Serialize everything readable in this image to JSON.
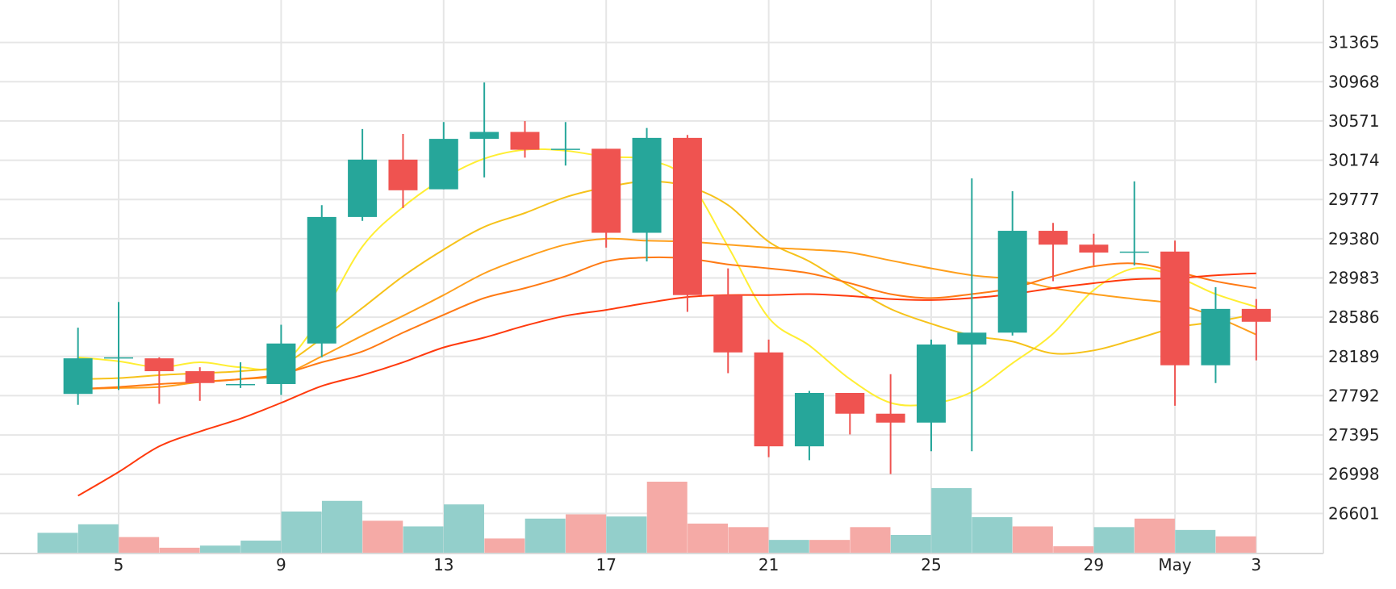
{
  "chart_data": {
    "type": "candlestick",
    "title": "",
    "xlabel": "",
    "ylabel": "",
    "y_ticks": [
      26601,
      26998,
      27395,
      27792,
      28189,
      28586,
      28983,
      29380,
      29777,
      30174,
      30571,
      30968,
      31365
    ],
    "ylim": [
      26204,
      31762
    ],
    "x_ticks": [
      {
        "day": 5,
        "label": "5"
      },
      {
        "day": 9,
        "label": "9"
      },
      {
        "day": 13,
        "label": "13"
      },
      {
        "day": 17,
        "label": "17"
      },
      {
        "day": 21,
        "label": "21"
      },
      {
        "day": 25,
        "label": "25"
      },
      {
        "day": 29,
        "label": "29"
      },
      {
        "day": 31,
        "label": "May"
      },
      {
        "day": 33,
        "label": "3"
      }
    ],
    "candles": [
      {
        "day": 4,
        "open": 27810,
        "high": 28480,
        "low": 27700,
        "close": 28170
      },
      {
        "day": 5,
        "open": 28170,
        "high": 28740,
        "low": 27850,
        "close": 28180
      },
      {
        "day": 6,
        "open": 28170,
        "high": 28180,
        "low": 27710,
        "close": 28040
      },
      {
        "day": 7,
        "open": 28040,
        "high": 28080,
        "low": 27740,
        "close": 27920
      },
      {
        "day": 8,
        "open": 27900,
        "high": 28130,
        "low": 27870,
        "close": 27910
      },
      {
        "day": 9,
        "open": 27910,
        "high": 28510,
        "low": 27800,
        "close": 28320
      },
      {
        "day": 10,
        "open": 28320,
        "high": 29720,
        "low": 28180,
        "close": 29600
      },
      {
        "day": 11,
        "open": 29600,
        "high": 30490,
        "low": 29560,
        "close": 30180
      },
      {
        "day": 12,
        "open": 30180,
        "high": 30440,
        "low": 29690,
        "close": 29870
      },
      {
        "day": 13,
        "open": 29880,
        "high": 30560,
        "low": 29880,
        "close": 30390
      },
      {
        "day": 14,
        "open": 30390,
        "high": 30960,
        "low": 30000,
        "close": 30460
      },
      {
        "day": 15,
        "open": 30460,
        "high": 30570,
        "low": 30200,
        "close": 30280
      },
      {
        "day": 16,
        "open": 30280,
        "high": 30560,
        "low": 30120,
        "close": 30290
      },
      {
        "day": 17,
        "open": 30290,
        "high": 30290,
        "low": 29290,
        "close": 29440
      },
      {
        "day": 18,
        "open": 29440,
        "high": 30500,
        "low": 29150,
        "close": 30400
      },
      {
        "day": 19,
        "open": 30400,
        "high": 30430,
        "low": 28640,
        "close": 28810
      },
      {
        "day": 20,
        "open": 28810,
        "high": 29080,
        "low": 28020,
        "close": 28230
      },
      {
        "day": 21,
        "open": 28230,
        "high": 28360,
        "low": 27170,
        "close": 27280
      },
      {
        "day": 22,
        "open": 27280,
        "high": 27840,
        "low": 27140,
        "close": 27820
      },
      {
        "day": 23,
        "open": 27820,
        "high": 27820,
        "low": 27400,
        "close": 27610
      },
      {
        "day": 24,
        "open": 27610,
        "high": 28010,
        "low": 27000,
        "close": 27520
      },
      {
        "day": 25,
        "open": 27520,
        "high": 28360,
        "low": 27230,
        "close": 28310
      },
      {
        "day": 26,
        "open": 28310,
        "high": 29990,
        "low": 27230,
        "close": 28430
      },
      {
        "day": 27,
        "open": 28430,
        "high": 29860,
        "low": 28400,
        "close": 29460
      },
      {
        "day": 28,
        "open": 29460,
        "high": 29540,
        "low": 28950,
        "close": 29320
      },
      {
        "day": 29,
        "open": 29320,
        "high": 29430,
        "low": 29110,
        "close": 29240
      },
      {
        "day": 30,
        "open": 29240,
        "high": 29960,
        "low": 29110,
        "close": 29250
      },
      {
        "day": 31,
        "open": 29250,
        "high": 29360,
        "low": 27690,
        "close": 28100
      },
      {
        "day": 32,
        "open": 28100,
        "high": 28890,
        "low": 27920,
        "close": 28670
      },
      {
        "day": 33,
        "open": 28670,
        "high": 28770,
        "low": 28150,
        "close": 28540
      }
    ],
    "volume": [
      {
        "day": 3.5,
        "volume": 0.28,
        "direction": "up"
      },
      {
        "day": 4.5,
        "volume": 0.4,
        "direction": "up"
      },
      {
        "day": 5.5,
        "volume": 0.22,
        "direction": "down"
      },
      {
        "day": 6.5,
        "volume": 0.07,
        "direction": "down"
      },
      {
        "day": 7.5,
        "volume": 0.1,
        "direction": "up"
      },
      {
        "day": 8.5,
        "volume": 0.17,
        "direction": "up"
      },
      {
        "day": 9.5,
        "volume": 0.58,
        "direction": "up"
      },
      {
        "day": 10.5,
        "volume": 0.73,
        "direction": "up"
      },
      {
        "day": 11.5,
        "volume": 0.45,
        "direction": "down"
      },
      {
        "day": 12.5,
        "volume": 0.37,
        "direction": "up"
      },
      {
        "day": 13.5,
        "volume": 0.68,
        "direction": "up"
      },
      {
        "day": 14.5,
        "volume": 0.2,
        "direction": "down"
      },
      {
        "day": 15.5,
        "volume": 0.48,
        "direction": "up"
      },
      {
        "day": 16.5,
        "volume": 0.54,
        "direction": "down"
      },
      {
        "day": 17.5,
        "volume": 0.51,
        "direction": "up"
      },
      {
        "day": 18.5,
        "volume": 1.0,
        "direction": "down"
      },
      {
        "day": 19.5,
        "volume": 0.41,
        "direction": "down"
      },
      {
        "day": 20.5,
        "volume": 0.36,
        "direction": "down"
      },
      {
        "day": 21.5,
        "volume": 0.18,
        "direction": "up"
      },
      {
        "day": 22.5,
        "volume": 0.18,
        "direction": "down"
      },
      {
        "day": 23.5,
        "volume": 0.36,
        "direction": "down"
      },
      {
        "day": 24.5,
        "volume": 0.25,
        "direction": "up"
      },
      {
        "day": 25.5,
        "volume": 0.91,
        "direction": "up"
      },
      {
        "day": 26.5,
        "volume": 0.5,
        "direction": "up"
      },
      {
        "day": 27.5,
        "volume": 0.37,
        "direction": "down"
      },
      {
        "day": 28.5,
        "volume": 0.09,
        "direction": "down"
      },
      {
        "day": 29.5,
        "volume": 0.36,
        "direction": "up"
      },
      {
        "day": 30.5,
        "volume": 0.48,
        "direction": "down"
      },
      {
        "day": 31.5,
        "volume": 0.32,
        "direction": "up"
      },
      {
        "day": 32.5,
        "volume": 0.23,
        "direction": "down"
      }
    ],
    "moving_averages": [
      {
        "color": "#ffee33",
        "points": [
          [
            4,
            28180
          ],
          [
            5,
            28140
          ],
          [
            6,
            28080
          ],
          [
            7,
            28130
          ],
          [
            8,
            28080
          ],
          [
            9,
            28100
          ],
          [
            10,
            28600
          ],
          [
            11,
            29300
          ],
          [
            12,
            29700
          ],
          [
            13,
            29990
          ],
          [
            14,
            30190
          ],
          [
            15,
            30280
          ],
          [
            16,
            30270
          ],
          [
            17,
            30210
          ],
          [
            18,
            30180
          ],
          [
            19,
            29980
          ],
          [
            20,
            29300
          ],
          [
            21,
            28580
          ],
          [
            22,
            28300
          ],
          [
            23,
            27960
          ],
          [
            24,
            27720
          ],
          [
            25,
            27710
          ],
          [
            26,
            27830
          ],
          [
            27,
            28120
          ],
          [
            28,
            28420
          ],
          [
            29,
            28860
          ],
          [
            30,
            29080
          ],
          [
            31,
            29000
          ],
          [
            32,
            28820
          ],
          [
            33,
            28690
          ]
        ]
      },
      {
        "color": "#f6c21a",
        "points": [
          [
            4,
            27960
          ],
          [
            5,
            27970
          ],
          [
            6,
            28000
          ],
          [
            7,
            28020
          ],
          [
            8,
            28040
          ],
          [
            9,
            28100
          ],
          [
            10,
            28370
          ],
          [
            11,
            28680
          ],
          [
            12,
            29000
          ],
          [
            13,
            29270
          ],
          [
            14,
            29500
          ],
          [
            15,
            29640
          ],
          [
            16,
            29800
          ],
          [
            17,
            29900
          ],
          [
            18,
            29960
          ],
          [
            19,
            29910
          ],
          [
            20,
            29720
          ],
          [
            21,
            29350
          ],
          [
            22,
            29150
          ],
          [
            23,
            28900
          ],
          [
            24,
            28670
          ],
          [
            25,
            28520
          ],
          [
            26,
            28400
          ],
          [
            27,
            28340
          ],
          [
            28,
            28220
          ],
          [
            29,
            28250
          ],
          [
            30,
            28360
          ],
          [
            31,
            28480
          ],
          [
            32,
            28540
          ],
          [
            33,
            28620
          ]
        ]
      },
      {
        "color": "#ff9f1c",
        "points": [
          [
            4,
            27860
          ],
          [
            5,
            27870
          ],
          [
            6,
            27880
          ],
          [
            7,
            27930
          ],
          [
            8,
            27960
          ],
          [
            9,
            28000
          ],
          [
            10,
            28190
          ],
          [
            11,
            28400
          ],
          [
            12,
            28600
          ],
          [
            13,
            28810
          ],
          [
            14,
            29030
          ],
          [
            15,
            29190
          ],
          [
            16,
            29320
          ],
          [
            17,
            29380
          ],
          [
            18,
            29360
          ],
          [
            19,
            29350
          ],
          [
            20,
            29320
          ],
          [
            21,
            29290
          ],
          [
            22,
            29270
          ],
          [
            23,
            29240
          ],
          [
            24,
            29160
          ],
          [
            25,
            29080
          ],
          [
            26,
            29010
          ],
          [
            27,
            28970
          ],
          [
            28,
            28880
          ],
          [
            29,
            28820
          ],
          [
            30,
            28770
          ],
          [
            31,
            28720
          ],
          [
            32,
            28590
          ],
          [
            33,
            28410
          ]
        ]
      },
      {
        "color": "#ff7a14",
        "points": [
          [
            4,
            27860
          ],
          [
            5,
            27880
          ],
          [
            6,
            27910
          ],
          [
            7,
            27930
          ],
          [
            8,
            27960
          ],
          [
            9,
            28010
          ],
          [
            10,
            28130
          ],
          [
            11,
            28240
          ],
          [
            12,
            28430
          ],
          [
            13,
            28610
          ],
          [
            14,
            28780
          ],
          [
            15,
            28880
          ],
          [
            16,
            29000
          ],
          [
            17,
            29150
          ],
          [
            18,
            29190
          ],
          [
            19,
            29180
          ],
          [
            20,
            29120
          ],
          [
            21,
            29080
          ],
          [
            22,
            29030
          ],
          [
            23,
            28930
          ],
          [
            24,
            28820
          ],
          [
            25,
            28780
          ],
          [
            26,
            28820
          ],
          [
            27,
            28880
          ],
          [
            28,
            29000
          ],
          [
            29,
            29100
          ],
          [
            30,
            29130
          ],
          [
            31,
            29050
          ],
          [
            32,
            28950
          ],
          [
            33,
            28880
          ]
        ]
      },
      {
        "color": "#ff3a0d",
        "points": [
          [
            4,
            26780
          ],
          [
            5,
            27020
          ],
          [
            6,
            27280
          ],
          [
            7,
            27430
          ],
          [
            8,
            27560
          ],
          [
            9,
            27720
          ],
          [
            10,
            27890
          ],
          [
            11,
            28000
          ],
          [
            12,
            28130
          ],
          [
            13,
            28280
          ],
          [
            14,
            28380
          ],
          [
            15,
            28500
          ],
          [
            16,
            28600
          ],
          [
            17,
            28660
          ],
          [
            18,
            28730
          ],
          [
            19,
            28790
          ],
          [
            20,
            28810
          ],
          [
            21,
            28810
          ],
          [
            22,
            28820
          ],
          [
            23,
            28800
          ],
          [
            24,
            28770
          ],
          [
            25,
            28760
          ],
          [
            26,
            28780
          ],
          [
            27,
            28820
          ],
          [
            28,
            28880
          ],
          [
            29,
            28930
          ],
          [
            30,
            28970
          ],
          [
            31,
            28980
          ],
          [
            32,
            29010
          ],
          [
            33,
            29030
          ]
        ]
      }
    ],
    "colors": {
      "up": "#26a69a",
      "down": "#ef5350",
      "volume_up": "#93cfcb",
      "volume_down": "#f5aaa6",
      "grid": "#e6e6e6",
      "axis_text": "#222222"
    },
    "grid": true
  }
}
